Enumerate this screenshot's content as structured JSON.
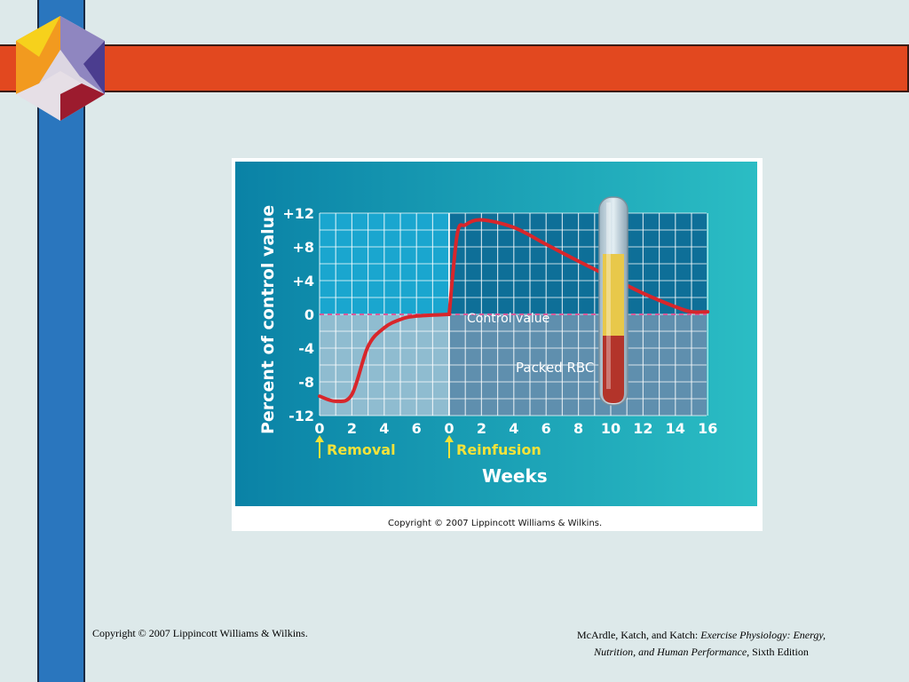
{
  "footer": {
    "copyright": "Copyright © 2007 Lippincott Williams & Wilkins.",
    "citation_authors": "McArdle, Katch, and Katch:",
    "citation_title_1": "Exercise Physiology: Energy,",
    "citation_title_2": "Nutrition, and Human Performance,",
    "citation_edition": "Sixth Edition"
  },
  "figure": {
    "copyright": "Copyright © 2007 Lippincott Williams & Wilkins.",
    "removal_label": "Removal",
    "reinfusion_label": "Reinfusion",
    "control_value_label": "Control value",
    "packed_rbc_label": "Packed RBC"
  },
  "chart_data": {
    "type": "line",
    "title": "",
    "xlabel": "Weeks",
    "ylabel": "Percent of control value",
    "ylim": [
      -12,
      12
    ],
    "y_ticks": [
      "+12",
      "+8",
      "+4",
      "0",
      "-4",
      "-8",
      "-12"
    ],
    "x_ticks": [
      "0",
      "2",
      "4",
      "6",
      "0",
      "2",
      "4",
      "6",
      "8",
      "10",
      "12",
      "14",
      "16"
    ],
    "grid": true,
    "control_line": 0,
    "series": [
      {
        "segment": "after removal",
        "x": [
          0,
          1,
          2,
          3,
          4,
          5,
          6,
          8
        ],
        "y": [
          -9.7,
          -10.3,
          -9.5,
          -3.8,
          -1.6,
          -0.6,
          -0.2,
          0
        ]
      },
      {
        "segment": "after reinfusion",
        "x": [
          0,
          0.5,
          1,
          2,
          4,
          6,
          8,
          10,
          12,
          14,
          15,
          16
        ],
        "y": [
          0,
          9.5,
          10.6,
          11.2,
          10.3,
          8.3,
          6.3,
          4.4,
          2.5,
          0.9,
          0.3,
          0.3
        ]
      }
    ]
  }
}
